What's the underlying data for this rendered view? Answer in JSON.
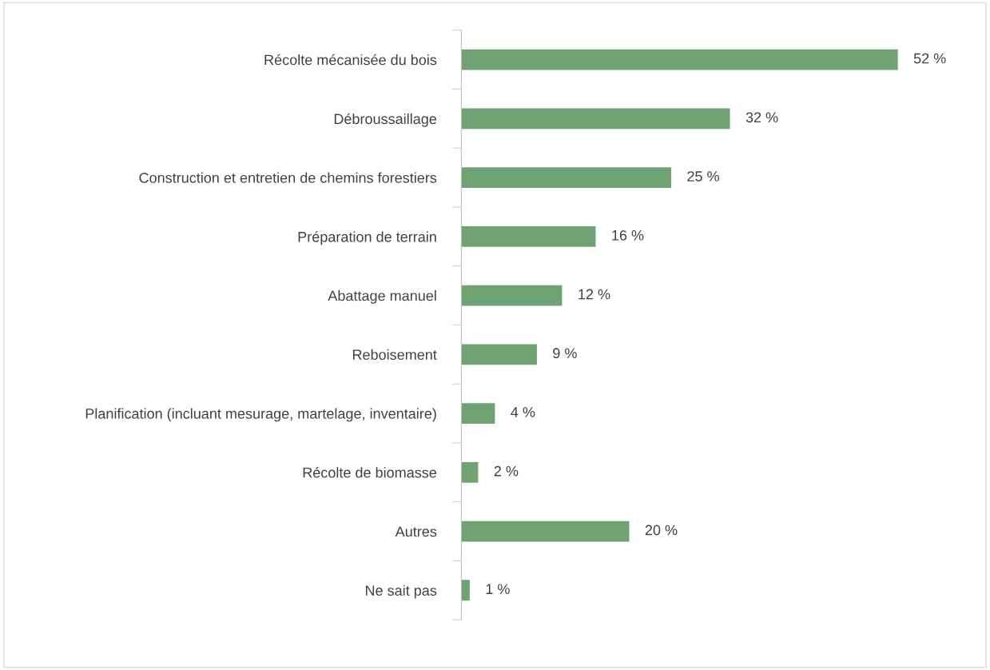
{
  "chart_data": {
    "type": "bar",
    "orientation": "horizontal",
    "categories": [
      "Récolte mécanisée du bois",
      "Débroussaillage",
      "Construction et entretien de chemins forestiers",
      "Préparation de terrain",
      "Abattage manuel",
      "Reboisement",
      "Planification (incluant mesurage, martelage, inventaire)",
      "Récolte de biomasse",
      "Autres",
      "Ne sait pas"
    ],
    "values": [
      52,
      32,
      25,
      16,
      12,
      9,
      4,
      2,
      20,
      1
    ],
    "value_labels": [
      "52 %",
      "32 %",
      "25 %",
      "16 %",
      "12 %",
      "9 %",
      "4 %",
      "2 %",
      "20 %",
      "1 %"
    ],
    "color": "#70a373",
    "grid": false,
    "legend": false
  }
}
